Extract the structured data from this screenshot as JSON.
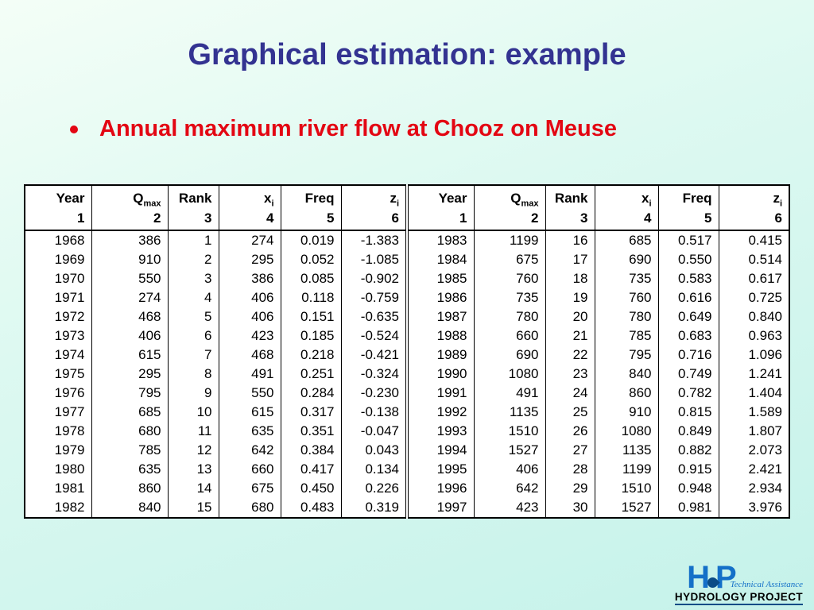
{
  "slide": {
    "title": "Graphical estimation: example",
    "bullet_text": "Annual maximum river flow at Chooz on Meuse"
  },
  "table": {
    "headers": [
      {
        "main": "Year",
        "sub": ""
      },
      {
        "main": "Q",
        "sub": "max"
      },
      {
        "main": "Rank",
        "sub": ""
      },
      {
        "main": "x",
        "sub": "i"
      },
      {
        "main": "Freq",
        "sub": ""
      },
      {
        "main": "z",
        "sub": "i"
      }
    ],
    "column_numbers": [
      "1",
      "2",
      "3",
      "4",
      "5",
      "6"
    ],
    "left_rows": [
      [
        "1968",
        "386",
        "1",
        "274",
        "0.019",
        "-1.383"
      ],
      [
        "1969",
        "910",
        "2",
        "295",
        "0.052",
        "-1.085"
      ],
      [
        "1970",
        "550",
        "3",
        "386",
        "0.085",
        "-0.902"
      ],
      [
        "1971",
        "274",
        "4",
        "406",
        "0.118",
        "-0.759"
      ],
      [
        "1972",
        "468",
        "5",
        "406",
        "0.151",
        "-0.635"
      ],
      [
        "1973",
        "406",
        "6",
        "423",
        "0.185",
        "-0.524"
      ],
      [
        "1974",
        "615",
        "7",
        "468",
        "0.218",
        "-0.421"
      ],
      [
        "1975",
        "295",
        "8",
        "491",
        "0.251",
        "-0.324"
      ],
      [
        "1976",
        "795",
        "9",
        "550",
        "0.284",
        "-0.230"
      ],
      [
        "1977",
        "685",
        "10",
        "615",
        "0.317",
        "-0.138"
      ],
      [
        "1978",
        "680",
        "11",
        "635",
        "0.351",
        "-0.047"
      ],
      [
        "1979",
        "785",
        "12",
        "642",
        "0.384",
        "0.043"
      ],
      [
        "1980",
        "635",
        "13",
        "660",
        "0.417",
        "0.134"
      ],
      [
        "1981",
        "860",
        "14",
        "675",
        "0.450",
        "0.226"
      ],
      [
        "1982",
        "840",
        "15",
        "680",
        "0.483",
        "0.319"
      ]
    ],
    "right_rows": [
      [
        "1983",
        "1199",
        "16",
        "685",
        "0.517",
        "0.415"
      ],
      [
        "1984",
        "675",
        "17",
        "690",
        "0.550",
        "0.514"
      ],
      [
        "1985",
        "760",
        "18",
        "735",
        "0.583",
        "0.617"
      ],
      [
        "1986",
        "735",
        "19",
        "760",
        "0.616",
        "0.725"
      ],
      [
        "1987",
        "780",
        "20",
        "780",
        "0.649",
        "0.840"
      ],
      [
        "1988",
        "660",
        "21",
        "785",
        "0.683",
        "0.963"
      ],
      [
        "1989",
        "690",
        "22",
        "795",
        "0.716",
        "1.096"
      ],
      [
        "1990",
        "1080",
        "23",
        "840",
        "0.749",
        "1.241"
      ],
      [
        "1991",
        "491",
        "24",
        "860",
        "0.782",
        "1.404"
      ],
      [
        "1992",
        "1135",
        "25",
        "910",
        "0.815",
        "1.589"
      ],
      [
        "1993",
        "1510",
        "26",
        "1080",
        "0.849",
        "1.807"
      ],
      [
        "1994",
        "1527",
        "27",
        "1135",
        "0.882",
        "2.073"
      ],
      [
        "1995",
        "406",
        "28",
        "1199",
        "0.915",
        "2.421"
      ],
      [
        "1996",
        "642",
        "29",
        "1510",
        "0.948",
        "2.934"
      ],
      [
        "1997",
        "423",
        "30",
        "1527",
        "0.981",
        "3.976"
      ]
    ]
  },
  "logo": {
    "letter_h": "H",
    "letter_p": "P",
    "tagline": "Technical Assistance",
    "name": "HYDROLOGY PROJECT"
  },
  "colors": {
    "title": "#333391",
    "bullet": "#e30613",
    "logo_blue": "#1470c8"
  }
}
